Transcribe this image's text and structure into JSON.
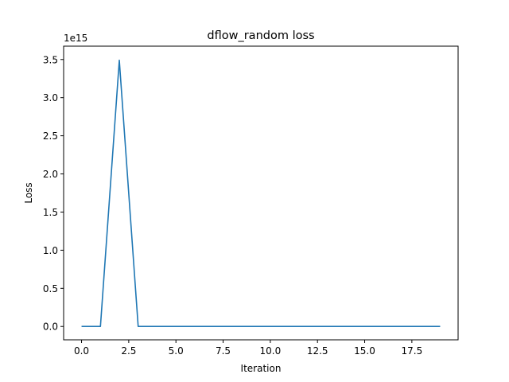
{
  "chart_data": {
    "type": "line",
    "title": "dflow_random loss",
    "xlabel": "Iteration",
    "ylabel": "Loss",
    "y_offset_label": "1e15",
    "y_scale_exponent": 15,
    "xlim": [
      -0.95,
      19.95
    ],
    "ylim": [
      -0.175,
      3.675
    ],
    "x_ticks": [
      0.0,
      2.5,
      5.0,
      7.5,
      10.0,
      12.5,
      15.0,
      17.5
    ],
    "x_tick_labels": [
      "0.0",
      "2.5",
      "5.0",
      "7.5",
      "10.0",
      "12.5",
      "15.0",
      "17.5"
    ],
    "y_ticks": [
      0.0,
      0.5,
      1.0,
      1.5,
      2.0,
      2.5,
      3.0,
      3.5
    ],
    "y_tick_labels": [
      "0.0",
      "0.5",
      "1.0",
      "1.5",
      "2.0",
      "2.5",
      "3.0",
      "3.5"
    ],
    "grid": false,
    "legend": "none",
    "series": [
      {
        "color": "#1f77b4",
        "x": [
          0,
          1,
          2,
          3,
          4,
          5,
          6,
          7,
          8,
          9,
          10,
          11,
          12,
          13,
          14,
          15,
          16,
          17,
          18,
          19
        ],
        "values": [
          0,
          0,
          3.49,
          0,
          0,
          0,
          0,
          0,
          0,
          0,
          0,
          0,
          0,
          0,
          0,
          0,
          0,
          0,
          0,
          0
        ]
      }
    ]
  }
}
